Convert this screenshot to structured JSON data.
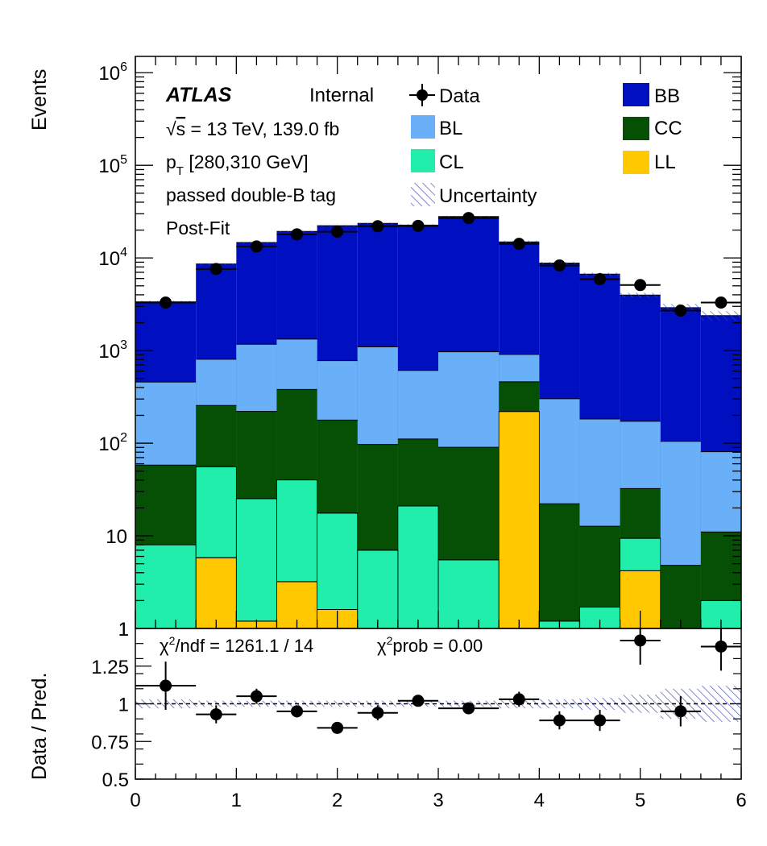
{
  "chart_data": [
    {
      "type": "bar",
      "stacked": true,
      "log_y": true,
      "ylim": [
        1,
        1500000
      ],
      "xlim": [
        0,
        6
      ],
      "ylabel": "Events",
      "y_ticks": [
        {
          "v": 10,
          "label": "10"
        },
        {
          "v": 100,
          "label": "10",
          "sup": "2"
        },
        {
          "v": 1000,
          "label": "10",
          "sup": "3"
        },
        {
          "v": 10000,
          "label": "10",
          "sup": "4"
        },
        {
          "v": 100000,
          "label": "10",
          "sup": "5"
        },
        {
          "v": 1000000,
          "label": "10",
          "sup": "6"
        }
      ],
      "y_tick_one": "1",
      "edges": [
        0,
        0.6,
        1.0,
        1.4,
        1.8,
        2.2,
        2.6,
        3.0,
        3.6,
        4.0,
        4.4,
        4.8,
        5.2,
        5.6,
        6.0
      ],
      "series": [
        {
          "name": "LL",
          "color": "#ffc800",
          "values": [
            0,
            5.8,
            1.2,
            3.2,
            1.6,
            0,
            0,
            0,
            220,
            0,
            0,
            4.2,
            0,
            0
          ]
        },
        {
          "name": "CL",
          "color": "#20eeaa",
          "values": [
            8,
            50,
            24,
            37,
            16,
            7,
            21,
            5.5,
            0,
            1.2,
            1.7,
            5.2,
            1,
            2
          ]
        },
        {
          "name": "CC",
          "color": "#055005",
          "values": [
            50,
            200,
            195,
            340,
            160,
            90,
            90,
            85,
            240,
            21,
            11,
            23,
            3.8,
            9
          ]
        },
        {
          "name": "BL",
          "color": "#6ab0f8",
          "values": [
            400,
            550,
            950,
            950,
            600,
            1000,
            500,
            880,
            450,
            280,
            170,
            140,
            100,
            70
          ]
        },
        {
          "name": "BB",
          "color": "#0010c0",
          "values": [
            2900,
            7800,
            13500,
            18000,
            21500,
            22500,
            22000,
            27000,
            14000,
            8500,
            6500,
            3800,
            2800,
            2300
          ]
        }
      ],
      "data_series": {
        "name": "Data",
        "x": [
          0.3,
          0.8,
          1.2,
          1.6,
          2.0,
          2.4,
          2.8,
          3.3,
          3.8,
          4.2,
          4.6,
          5.0,
          5.4,
          5.8
        ],
        "y": [
          3300,
          7600,
          13300,
          18000,
          19200,
          22000,
          22200,
          27000,
          14200,
          8300,
          5900,
          5100,
          2700,
          3300
        ],
        "xerr": [
          0.3,
          0.2,
          0.2,
          0.2,
          0.2,
          0.2,
          0.2,
          0.3,
          0.2,
          0.2,
          0.2,
          0.2,
          0.2,
          0.2
        ]
      },
      "uncertainty_name": "Uncertainty",
      "legend": [
        {
          "label": "Data",
          "kind": "marker"
        },
        {
          "label": "BB",
          "kind": "box",
          "color": "#0010c0"
        },
        {
          "label": "BL",
          "kind": "box",
          "color": "#6ab0f8"
        },
        {
          "label": "CC",
          "kind": "box",
          "color": "#055005"
        },
        {
          "label": "CL",
          "kind": "box",
          "color": "#20eeaa"
        },
        {
          "label": "LL",
          "kind": "box",
          "color": "#ffc800"
        },
        {
          "label": "Uncertainty",
          "kind": "hatch"
        }
      ],
      "annotations": {
        "atlas": "ATLAS",
        "internal": "Internal",
        "energy_sqrt": "√",
        "energy_s": "s",
        "energy_rest": " = 13 TeV, 139.0 fb",
        "pt_p": "p",
        "pt_sub": "T",
        "pt_range": " [280,310 GeV]",
        "tag": "passed double-B tag",
        "fit": "Post-Fit"
      }
    },
    {
      "type": "scatter",
      "ylabel": "Data / Pred.",
      "ylim": [
        0.5,
        1.5
      ],
      "xlim": [
        0,
        6
      ],
      "y_ticks": [
        "0.5",
        "0.75",
        "1",
        "1.25"
      ],
      "y_tick_values": [
        0.5,
        0.75,
        1.0,
        1.25
      ],
      "x_ticks": [
        "0",
        "1",
        "2",
        "3",
        "4",
        "5",
        "6"
      ],
      "x": [
        0.3,
        0.8,
        1.2,
        1.6,
        2.0,
        2.4,
        2.8,
        3.3,
        3.8,
        4.2,
        4.6,
        5.0,
        5.4,
        5.8
      ],
      "y": [
        1.12,
        0.93,
        1.05,
        0.95,
        0.84,
        0.94,
        1.02,
        0.97,
        1.03,
        0.89,
        0.89,
        1.42,
        0.95,
        1.38
      ],
      "xerr": [
        0.3,
        0.2,
        0.2,
        0.2,
        0.2,
        0.2,
        0.2,
        0.3,
        0.2,
        0.2,
        0.2,
        0.2,
        0.2,
        0.2
      ],
      "yerr": [
        0.16,
        0.06,
        0.05,
        0.04,
        0.03,
        0.05,
        0.03,
        0.03,
        0.05,
        0.06,
        0.07,
        0.16,
        0.1,
        0.16
      ],
      "uncertainty_band": [
        0.03,
        0.02,
        0.02,
        0.02,
        0.02,
        0.02,
        0.02,
        0.02,
        0.03,
        0.03,
        0.04,
        0.06,
        0.1,
        0.12
      ],
      "chi2_label": "/ndf = 1261.1 / 14",
      "chi2_symbol": "χ",
      "chi2_sup": "2",
      "chi2prob_label": "prob = 0.00"
    }
  ]
}
